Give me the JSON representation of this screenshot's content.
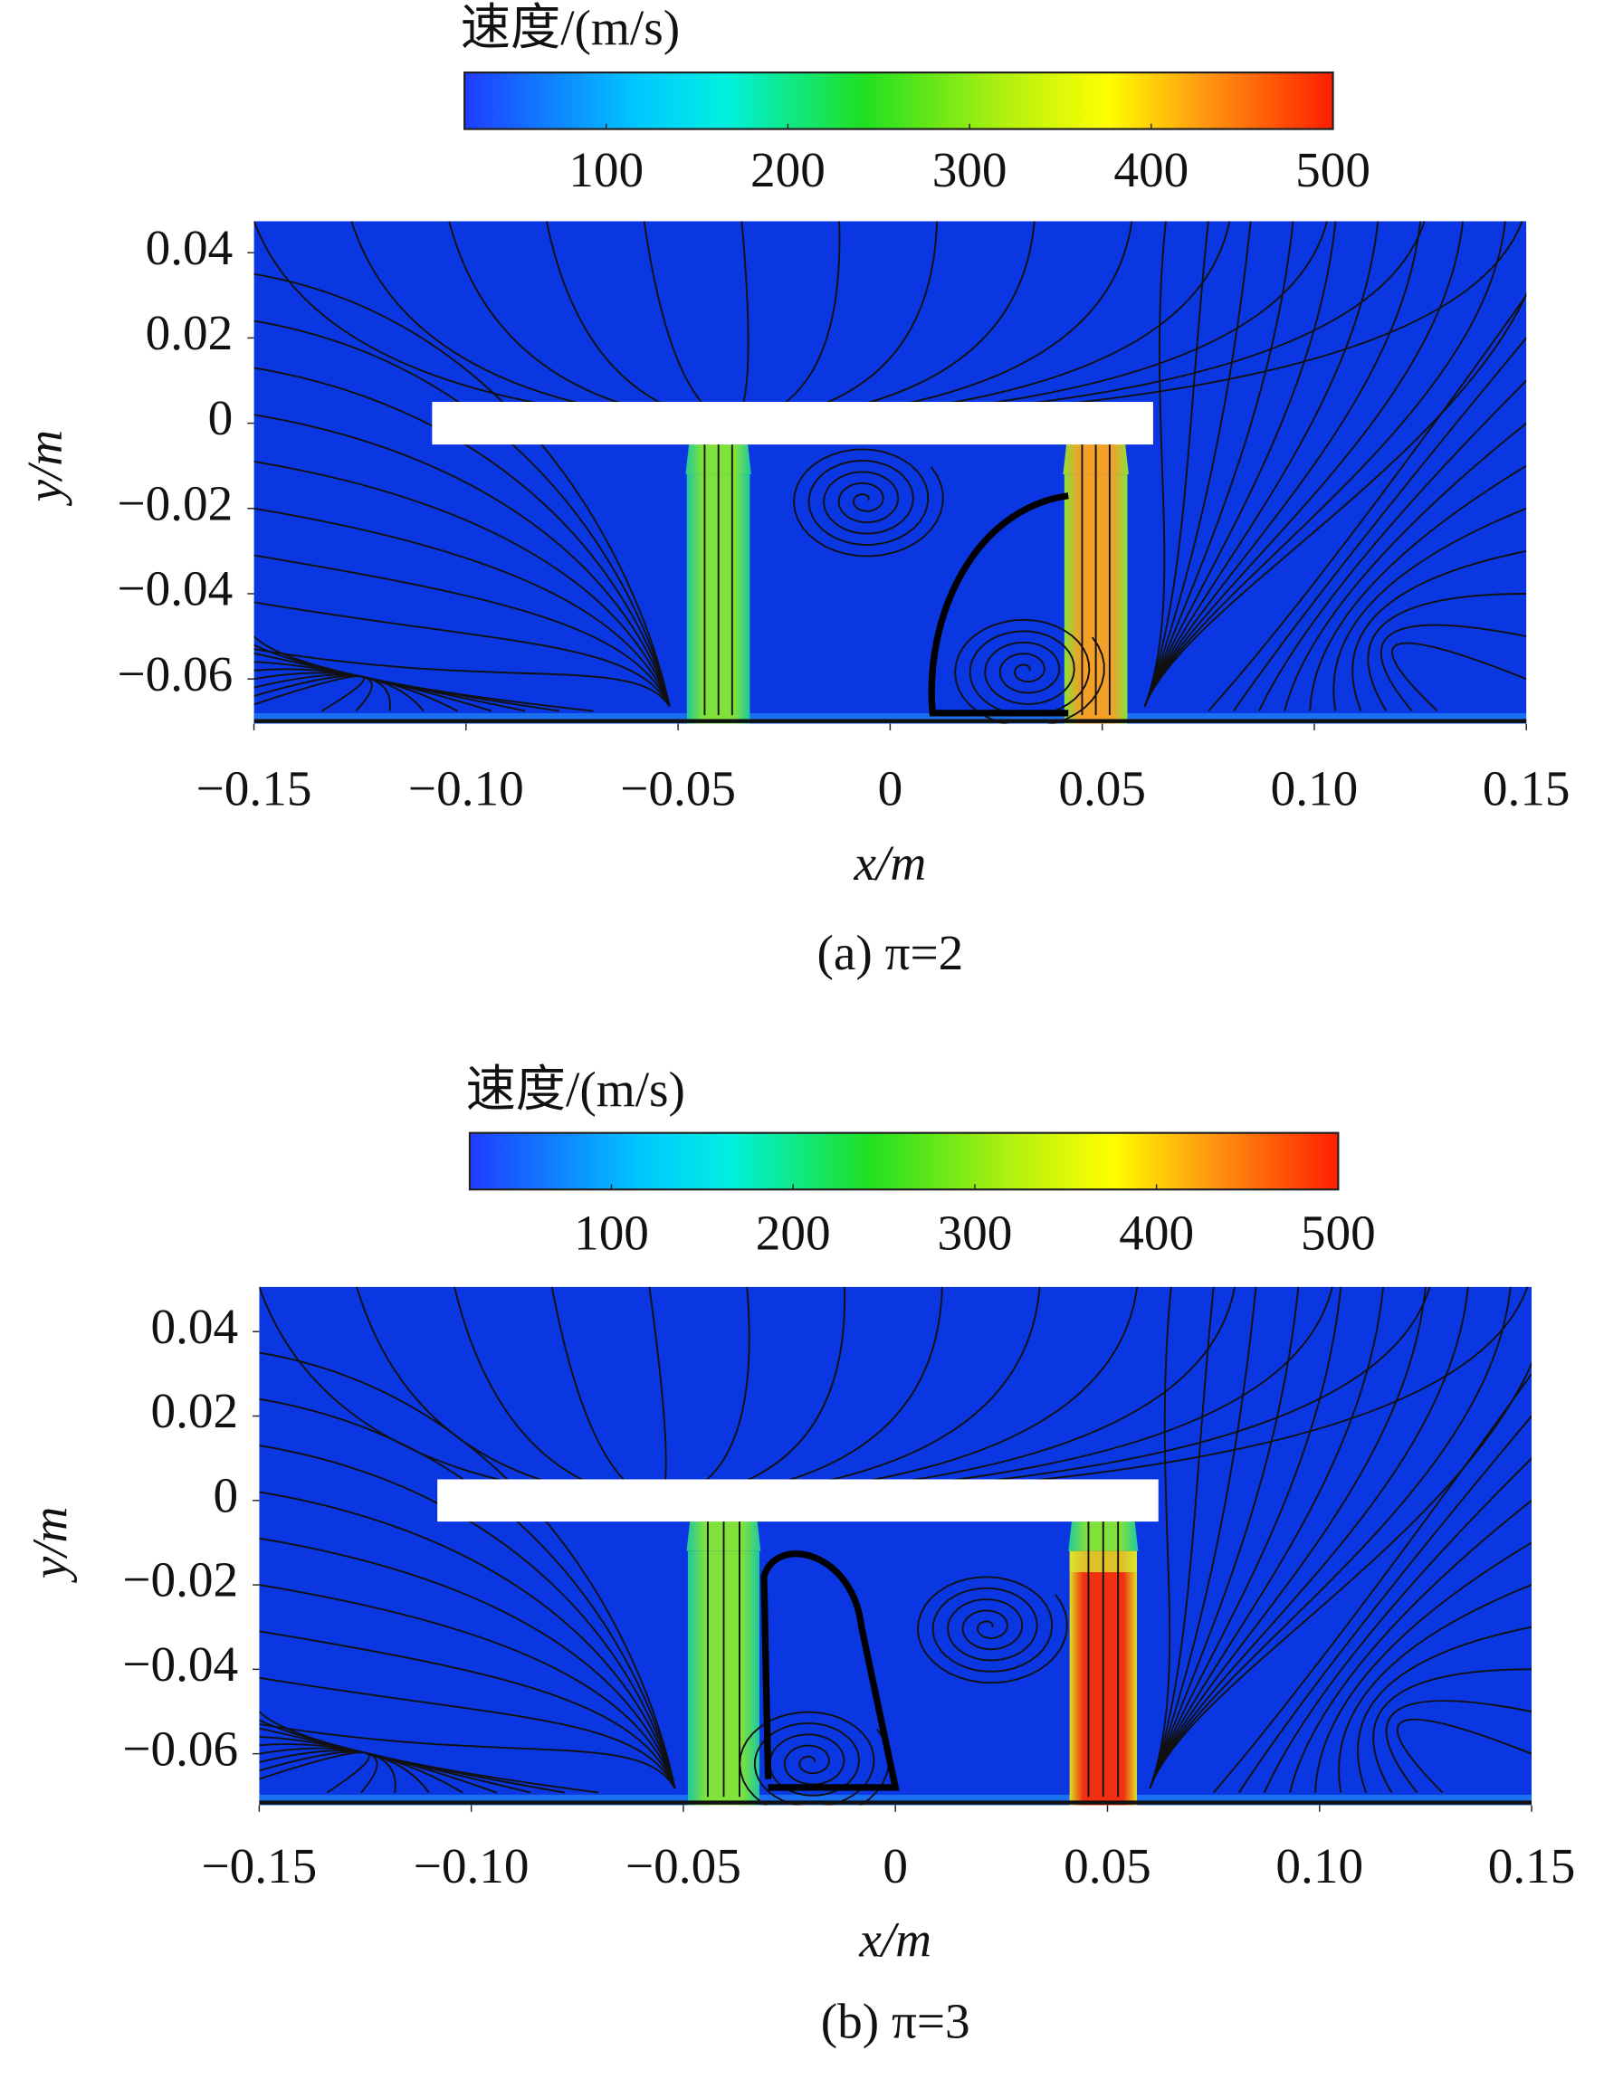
{
  "chart_data": [
    {
      "type": "contour",
      "colormap": "jet",
      "colorbar_title": "速度/(m/s)",
      "clim": [
        22,
        500
      ],
      "colorbar_ticks": [
        100,
        200,
        300,
        400,
        500
      ],
      "xlim": [
        -0.15,
        0.15
      ],
      "ylim": [
        -0.0705,
        0.0474
      ],
      "xticks": [
        {
          "value": -0.15,
          "label": "−0.15"
        },
        {
          "value": -0.1,
          "label": "−0.10"
        },
        {
          "value": -0.05,
          "label": "−0.05"
        },
        0,
        0.05,
        {
          "value": 0.1,
          "label": "0.10"
        },
        0.15
      ],
      "yticks": [
        0.04,
        0.02,
        0,
        {
          "value": -0.02,
          "label": "−0.02"
        },
        {
          "value": -0.04,
          "label": "−0.04"
        },
        {
          "value": -0.06,
          "label": "−0.06"
        }
      ],
      "xlabel": "x/m",
      "ylabel": "y/m",
      "caption": "(a) π=2"
    },
    {
      "type": "contour",
      "colormap": "jet",
      "colorbar_title": "速度/(m/s)",
      "clim": [
        22,
        500
      ],
      "colorbar_ticks": [
        100,
        200,
        300,
        400,
        500
      ],
      "xlim": [
        -0.15,
        0.15
      ],
      "ylim": [
        -0.0722,
        0.0506
      ],
      "xticks": [
        {
          "value": -0.15,
          "label": "−0.15"
        },
        {
          "value": -0.1,
          "label": "−0.10"
        },
        {
          "value": -0.05,
          "label": "−0.05"
        },
        0,
        0.05,
        {
          "value": 0.1,
          "label": "0.10"
        },
        0.15
      ],
      "yticks": [
        0.04,
        0.02,
        0,
        {
          "value": -0.02,
          "label": "−0.02"
        },
        {
          "value": -0.04,
          "label": "−0.04"
        },
        {
          "value": -0.06,
          "label": "−0.06"
        }
      ],
      "xlabel": "x/m",
      "ylabel": "y/m",
      "caption": "(b) π=3"
    }
  ]
}
